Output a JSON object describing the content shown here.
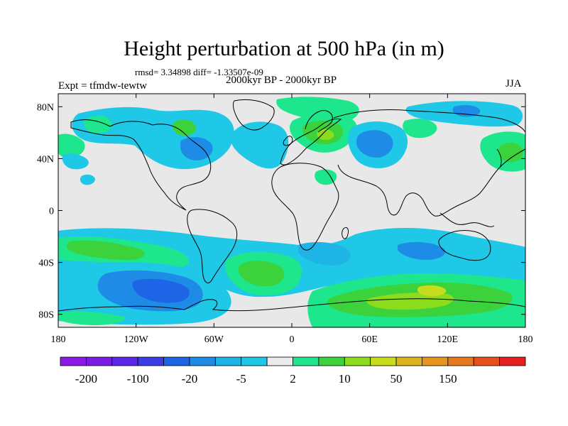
{
  "title": "Height perturbation at 500 hPa (in m)",
  "stats": "rmsd= 3.34898 diff= -1.33507e-09",
  "period": "2000kyr BP - 2000kyr BP",
  "experiment": "Expt = tfmdw-tewtw",
  "season": "JJA",
  "map": {
    "lat_ticks": [
      "80N",
      "40N",
      "0",
      "40S",
      "80S"
    ],
    "lon_ticks": [
      "180",
      "120W",
      "60W",
      "0",
      "60E",
      "120E",
      "180"
    ],
    "background_color": "#e8e8e8"
  },
  "colorbar": {
    "colors": [
      "#8c19e6",
      "#7a1ee6",
      "#5a28e6",
      "#3c3ce6",
      "#1e64e6",
      "#1e8ce6",
      "#1eb4e6",
      "#1ec8e6",
      "#ebebeb",
      "#1ee68c",
      "#3cd23c",
      "#8cdc1e",
      "#c8dc1e",
      "#dcb41e",
      "#e6961e",
      "#e6781e",
      "#e6501e",
      "#e61e1e"
    ],
    "labels": [
      "-200",
      "-100",
      "-20",
      "-5",
      "2",
      "10",
      "50",
      "150"
    ]
  }
}
